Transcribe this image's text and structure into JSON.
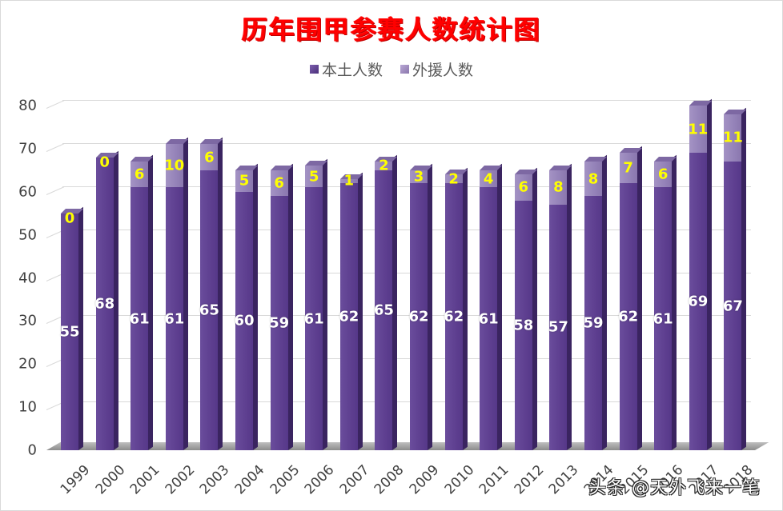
{
  "chart_data": {
    "type": "bar",
    "stacked": true,
    "style": "3d-column",
    "title": "历年围甲参赛人数统计图",
    "xlabel": "",
    "ylabel": "",
    "ylim": [
      0,
      80
    ],
    "yticks": [
      0,
      10,
      20,
      30,
      40,
      50,
      60,
      70,
      80
    ],
    "grid": true,
    "legend_position": "top",
    "categories": [
      "1999",
      "2000",
      "2001",
      "2002",
      "2003",
      "2004",
      "2005",
      "2006",
      "2007",
      "2008",
      "2009",
      "2010",
      "2011",
      "2012",
      "2013",
      "2014",
      "2015",
      "2016",
      "2017",
      "2018"
    ],
    "series": [
      {
        "name": "本土人数",
        "color": "#5e3f90",
        "values": [
          55,
          68,
          61,
          61,
          65,
          60,
          59,
          61,
          62,
          65,
          62,
          62,
          61,
          58,
          57,
          59,
          62,
          61,
          69,
          67
        ]
      },
      {
        "name": "外援人数",
        "color": "#9482b8",
        "values": [
          0,
          0,
          6,
          10,
          6,
          5,
          6,
          5,
          1,
          2,
          3,
          2,
          4,
          6,
          8,
          8,
          7,
          6,
          11,
          11
        ]
      }
    ]
  },
  "legend": {
    "items": [
      {
        "label": "本土人数"
      },
      {
        "label": "外援人数"
      }
    ]
  },
  "watermark": "头条 @天外飞来一笔"
}
